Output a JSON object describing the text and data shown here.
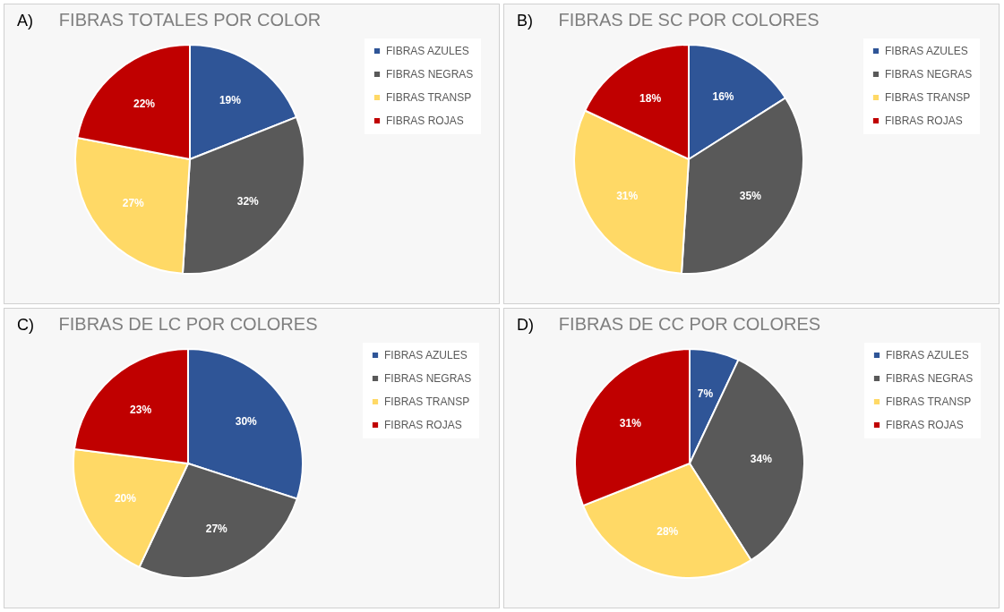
{
  "chart_data": [
    {
      "type": "pie",
      "title": "FIBRAS TOTALES POR COLOR",
      "annotations": [
        "A)"
      ],
      "categories": [
        "FIBRAS AZULES",
        "FIBRAS NEGRAS",
        "FIBRAS TRANSP",
        "FIBRAS ROJAS"
      ],
      "values": [
        19,
        32,
        27,
        22
      ],
      "value_labels": [
        "19%",
        "32%",
        "27%",
        "22%"
      ],
      "colors": [
        "#2f5597",
        "#595959",
        "#ffd966",
        "#c00000"
      ],
      "legend": "right"
    },
    {
      "type": "pie",
      "title": "FIBRAS DE SC POR COLORES",
      "annotations": [
        "B)"
      ],
      "categories": [
        "FIBRAS AZULES",
        "FIBRAS NEGRAS",
        "FIBRAS TRANSP",
        "FIBRAS ROJAS"
      ],
      "values": [
        16,
        35,
        31,
        18
      ],
      "value_labels": [
        "16%",
        "35%",
        "31%",
        "18%"
      ],
      "colors": [
        "#2f5597",
        "#595959",
        "#ffd966",
        "#c00000"
      ],
      "legend": "right"
    },
    {
      "type": "pie",
      "title": "FIBRAS DE LC POR COLORES",
      "annotations": [
        "C)"
      ],
      "categories": [
        "FIBRAS AZULES",
        "FIBRAS NEGRAS",
        "FIBRAS TRANSP",
        "FIBRAS ROJAS"
      ],
      "values": [
        30,
        27,
        20,
        23
      ],
      "value_labels": [
        "30%",
        "27%",
        "20%",
        "23%"
      ],
      "colors": [
        "#2f5597",
        "#595959",
        "#ffd966",
        "#c00000"
      ],
      "legend": "right"
    },
    {
      "type": "pie",
      "title": "FIBRAS DE CC POR COLORES",
      "annotations": [
        "D)"
      ],
      "categories": [
        "FIBRAS AZULES",
        "FIBRAS NEGRAS",
        "FIBRAS TRANSP",
        "FIBRAS ROJAS"
      ],
      "values": [
        7,
        34,
        28,
        31
      ],
      "value_labels": [
        "7%",
        "34%",
        "28%",
        "31%"
      ],
      "colors": [
        "#2f5597",
        "#595959",
        "#ffd966",
        "#c00000"
      ],
      "legend": "right"
    }
  ]
}
